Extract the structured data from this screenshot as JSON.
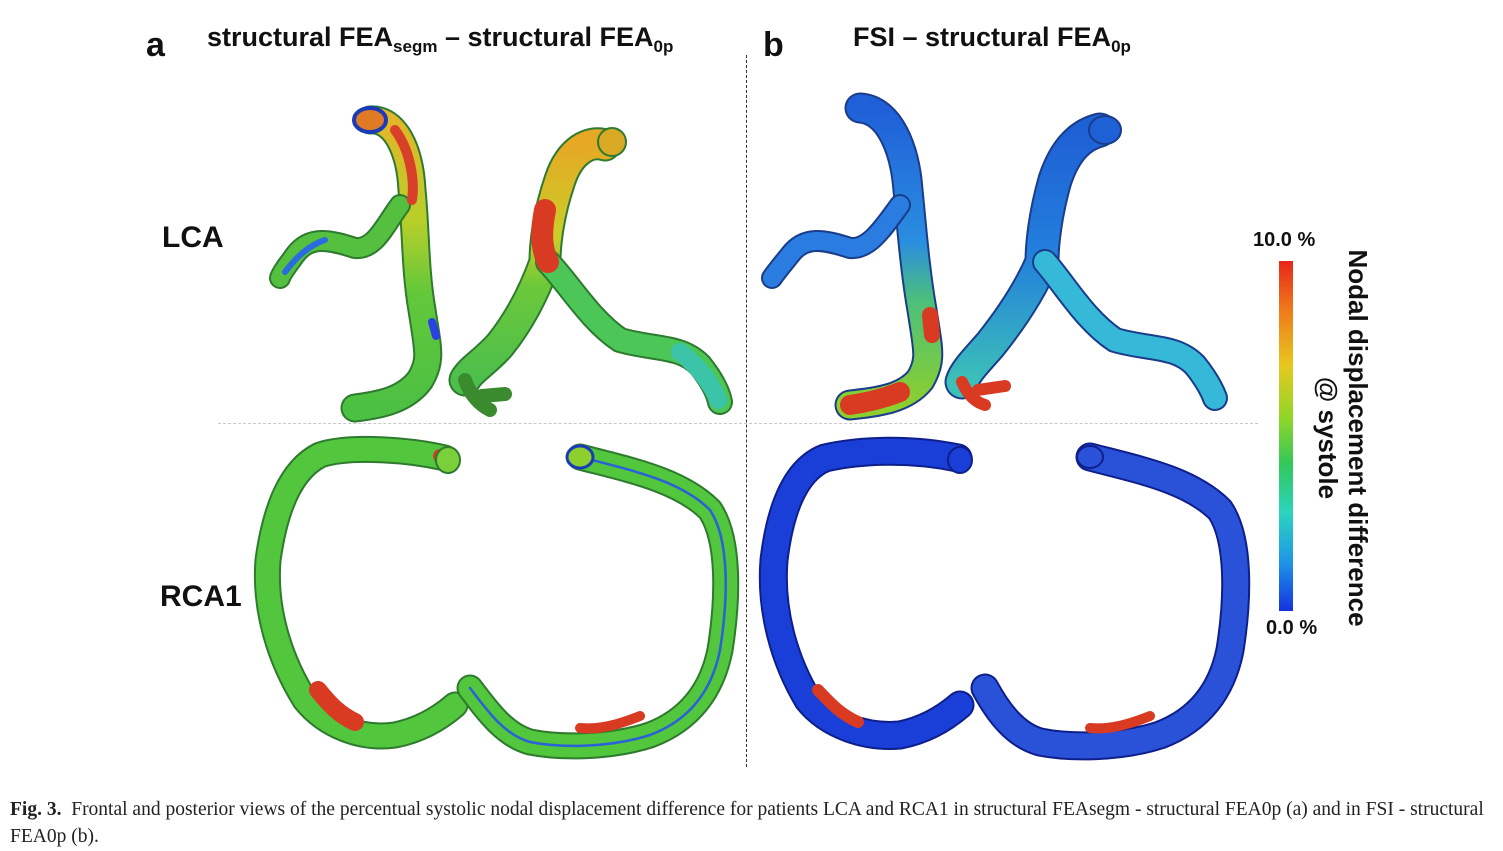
{
  "panels": {
    "a": {
      "letter": "a",
      "title_parts": {
        "t1": "structural FEA",
        "s1": "segm",
        "t2": " – structural FEA",
        "s2": "0p"
      }
    },
    "b": {
      "letter": "b",
      "title_parts": {
        "t1": "FSI – structural FEA",
        "s1": "0p"
      }
    }
  },
  "rows": {
    "lca": "LCA",
    "rca": "RCA1"
  },
  "colorbar": {
    "max_label": "10.0 %",
    "min_label": "0.0 %",
    "title_line1": "Nodal displacement difference",
    "title_line2": "@ systole",
    "colors": [
      "#e8261a",
      "#e6c81e",
      "#32c85a",
      "#2bd4c0",
      "#1432e0"
    ]
  },
  "caption": {
    "label": "Fig. 3.",
    "text": "Frontal and posterior views of the percentual systolic nodal displacement difference for patients LCA and RCA1 in structural FEAsegm - structural FEA0p (a) and in FSI - structural FEA0p (b)."
  }
}
